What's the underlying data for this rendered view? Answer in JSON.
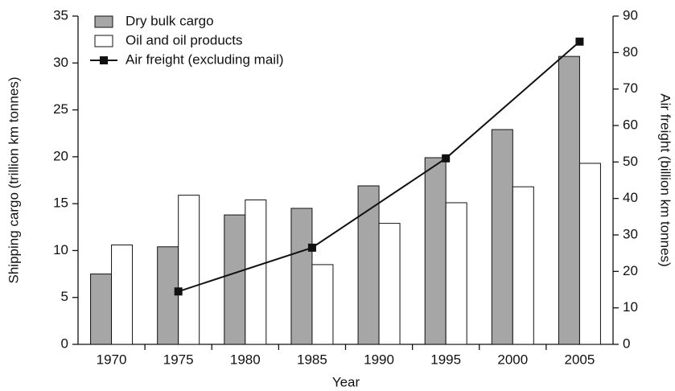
{
  "chart_data": {
    "type": "bar",
    "x_label": "Year",
    "y_label": "Shipping cargo (trillion km tonnes)",
    "y2_label": "Air freight (billion km tonnes)",
    "categories": [
      "1970",
      "1975",
      "1980",
      "1985",
      "1990",
      "1995",
      "2000",
      "2005"
    ],
    "series": [
      {
        "name": "Dry bulk cargo",
        "color": "#a6a6a6",
        "values": [
          7.5,
          10.4,
          13.8,
          14.5,
          16.9,
          19.9,
          22.9,
          30.7
        ]
      },
      {
        "name": "Oil and oil products",
        "color": "#ffffff",
        "values": [
          10.6,
          15.9,
          15.4,
          8.5,
          12.9,
          15.1,
          16.8,
          19.3
        ]
      },
      {
        "name": "Air freight (excluding mail)",
        "color": "#111111",
        "type": "line",
        "axis": "y2",
        "x": [
          "1975",
          "1985",
          "1995",
          "2005"
        ],
        "values": [
          14.5,
          26.5,
          51,
          83
        ]
      }
    ],
    "ylim": [
      0,
      35
    ],
    "yticks": [
      0,
      5,
      10,
      15,
      20,
      25,
      30,
      35
    ],
    "y2lim": [
      0,
      90
    ],
    "y2ticks": [
      0,
      10,
      20,
      30,
      40,
      50,
      60,
      70,
      80,
      90
    ],
    "legend": "upper left"
  }
}
